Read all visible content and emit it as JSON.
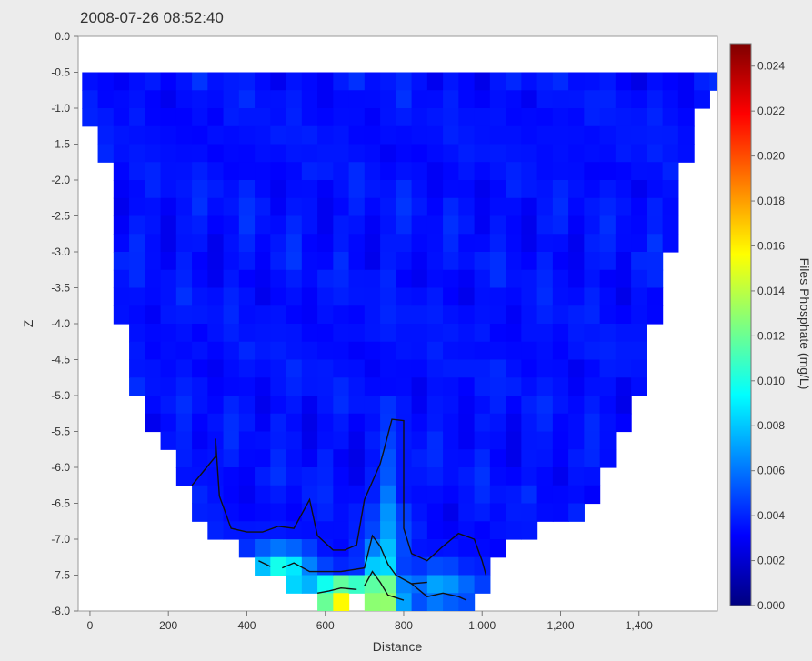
{
  "timestamp": "2008-07-26 08:52:40",
  "chart_data": {
    "type": "heatmap",
    "xlabel": "Distance",
    "ylabel": "Z",
    "colorbar_label": "Files Phosphate (mg/L)",
    "xlim": [
      -30,
      1600
    ],
    "ylim": [
      -8.0,
      0.0
    ],
    "x_ticks": [
      {
        "v": 0,
        "label": "0"
      },
      {
        "v": 200,
        "label": "200"
      },
      {
        "v": 400,
        "label": "400"
      },
      {
        "v": 600,
        "label": "600"
      },
      {
        "v": 800,
        "label": "800"
      },
      {
        "v": 1000,
        "label": "1,000"
      },
      {
        "v": 1200,
        "label": "1,200"
      },
      {
        "v": 1400,
        "label": "1,400"
      }
    ],
    "y_ticks": [
      {
        "v": 0.0,
        "label": "0.0"
      },
      {
        "v": -0.5,
        "label": "-0.5"
      },
      {
        "v": -1.0,
        "label": "-1.0"
      },
      {
        "v": -1.5,
        "label": "-1.5"
      },
      {
        "v": -2.0,
        "label": "-2.0"
      },
      {
        "v": -2.5,
        "label": "-2.5"
      },
      {
        "v": -3.0,
        "label": "-3.0"
      },
      {
        "v": -3.5,
        "label": "-3.5"
      },
      {
        "v": -4.0,
        "label": "-4.0"
      },
      {
        "v": -4.5,
        "label": "-4.5"
      },
      {
        "v": -5.0,
        "label": "-5.0"
      },
      {
        "v": -5.5,
        "label": "-5.5"
      },
      {
        "v": -6.0,
        "label": "-6.0"
      },
      {
        "v": -6.5,
        "label": "-6.5"
      },
      {
        "v": -7.0,
        "label": "-7.0"
      },
      {
        "v": -7.5,
        "label": "-7.5"
      },
      {
        "v": -8.0,
        "label": "-8.0"
      }
    ],
    "colorbar": {
      "min": 0.0,
      "max": 0.025,
      "ticks": [
        {
          "v": 0.0,
          "label": "0.000"
        },
        {
          "v": 0.002,
          "label": "0.002"
        },
        {
          "v": 0.004,
          "label": "0.004"
        },
        {
          "v": 0.006,
          "label": "0.006"
        },
        {
          "v": 0.008,
          "label": "0.008"
        },
        {
          "v": 0.01,
          "label": "0.010"
        },
        {
          "v": 0.012,
          "label": "0.012"
        },
        {
          "v": 0.014,
          "label": "0.014"
        },
        {
          "v": 0.016,
          "label": "0.016"
        },
        {
          "v": 0.018,
          "label": "0.018"
        },
        {
          "v": 0.02,
          "label": "0.020"
        },
        {
          "v": 0.022,
          "label": "0.022"
        },
        {
          "v": 0.024,
          "label": "0.024"
        }
      ],
      "colormap": [
        "#00007f",
        "#0000ff",
        "#007fff",
        "#00ffff",
        "#7fff7f",
        "#ffff00",
        "#ff7f00",
        "#ff0000",
        "#7f0000"
      ]
    },
    "cell_size": {
      "dx": 40,
      "dz": 0.25
    },
    "bottom_profile": [
      [
        -20,
        -1.25
      ],
      [
        20,
        -1.75
      ],
      [
        60,
        -4.0
      ],
      [
        100,
        -5.0
      ],
      [
        140,
        -5.5
      ],
      [
        180,
        -5.75
      ],
      [
        220,
        -6.25
      ],
      [
        260,
        -6.75
      ],
      [
        300,
        -7.0
      ],
      [
        340,
        -7.0
      ],
      [
        380,
        -7.25
      ],
      [
        420,
        -7.5
      ],
      [
        460,
        -7.5
      ],
      [
        500,
        -7.75
      ],
      [
        540,
        -7.75
      ],
      [
        580,
        -8.0
      ],
      [
        620,
        -8.0
      ],
      [
        660,
        -7.75
      ],
      [
        700,
        -8.0
      ],
      [
        740,
        -8.0
      ],
      [
        780,
        -8.0
      ],
      [
        820,
        -8.0
      ],
      [
        860,
        -8.0
      ],
      [
        900,
        -8.0
      ],
      [
        940,
        -8.0
      ],
      [
        980,
        -7.75
      ],
      [
        1020,
        -7.25
      ],
      [
        1060,
        -7.0
      ],
      [
        1100,
        -7.0
      ],
      [
        1140,
        -6.75
      ],
      [
        1180,
        -6.75
      ],
      [
        1220,
        -6.75
      ],
      [
        1260,
        -6.5
      ],
      [
        1300,
        -6.0
      ],
      [
        1340,
        -5.5
      ],
      [
        1380,
        -5.0
      ],
      [
        1420,
        -4.0
      ],
      [
        1460,
        -3.0
      ],
      [
        1500,
        -1.75
      ],
      [
        1540,
        -1.0
      ],
      [
        1580,
        -0.75
      ]
    ],
    "background_value": 0.0035,
    "hotspots": [
      {
        "x": 270,
        "z": -6.2,
        "sx": 25,
        "sz": 0.35,
        "a": 0.0012
      },
      {
        "x": 490,
        "z": -7.45,
        "sx": 80,
        "sz": 0.35,
        "a": 0.0065
      },
      {
        "x": 650,
        "z": -7.8,
        "sx": 70,
        "sz": 0.25,
        "a": 0.0135
      },
      {
        "x": 760,
        "z": -7.8,
        "sx": 45,
        "sz": 0.25,
        "a": 0.008
      },
      {
        "x": 730,
        "z": -7.4,
        "sx": 40,
        "sz": 0.4,
        "a": 0.0045
      },
      {
        "x": 770,
        "z": -6.7,
        "sx": 28,
        "sz": 0.9,
        "a": 0.0035
      },
      {
        "x": 900,
        "z": -7.7,
        "sx": 80,
        "sz": 0.3,
        "a": 0.0035
      }
    ],
    "contours": [
      [
        [
          260,
          -6.25
        ],
        [
          290,
          -6.05
        ],
        [
          320,
          -5.85
        ],
        [
          320,
          -5.6
        ],
        [
          330,
          -6.4
        ],
        [
          360,
          -6.85
        ],
        [
          400,
          -6.9
        ],
        [
          440,
          -6.9
        ],
        [
          480,
          -6.82
        ],
        [
          520,
          -6.85
        ],
        [
          560,
          -6.45
        ],
        [
          580,
          -6.95
        ],
        [
          620,
          -7.15
        ],
        [
          650,
          -7.15
        ],
        [
          680,
          -7.08
        ],
        [
          700,
          -6.45
        ],
        [
          740,
          -5.95
        ],
        [
          750,
          -5.75
        ],
        [
          770,
          -5.33
        ],
        [
          800,
          -5.35
        ],
        [
          800,
          -6.85
        ],
        [
          820,
          -7.2
        ],
        [
          860,
          -7.3
        ],
        [
          900,
          -7.1
        ],
        [
          940,
          -6.92
        ],
        [
          980,
          -7.0
        ],
        [
          1000,
          -7.3
        ],
        [
          1010,
          -7.5
        ]
      ],
      [
        [
          430,
          -7.3
        ],
        [
          460,
          -7.38
        ]
      ],
      [
        [
          490,
          -7.4
        ],
        [
          520,
          -7.33
        ],
        [
          560,
          -7.45
        ],
        [
          640,
          -7.45
        ],
        [
          700,
          -7.4
        ],
        [
          720,
          -6.95
        ],
        [
          740,
          -7.1
        ],
        [
          760,
          -7.35
        ],
        [
          780,
          -7.5
        ],
        [
          820,
          -7.62
        ],
        [
          860,
          -7.6
        ]
      ],
      [
        [
          580,
          -7.75
        ],
        [
          610,
          -7.72
        ],
        [
          640,
          -7.68
        ],
        [
          680,
          -7.7
        ]
      ],
      [
        [
          700,
          -7.65
        ],
        [
          720,
          -7.45
        ],
        [
          740,
          -7.6
        ],
        [
          760,
          -7.78
        ],
        [
          800,
          -7.85
        ]
      ],
      [
        [
          820,
          -7.62
        ],
        [
          860,
          -7.8
        ],
        [
          900,
          -7.75
        ],
        [
          940,
          -7.8
        ],
        [
          960,
          -7.85
        ]
      ]
    ]
  }
}
